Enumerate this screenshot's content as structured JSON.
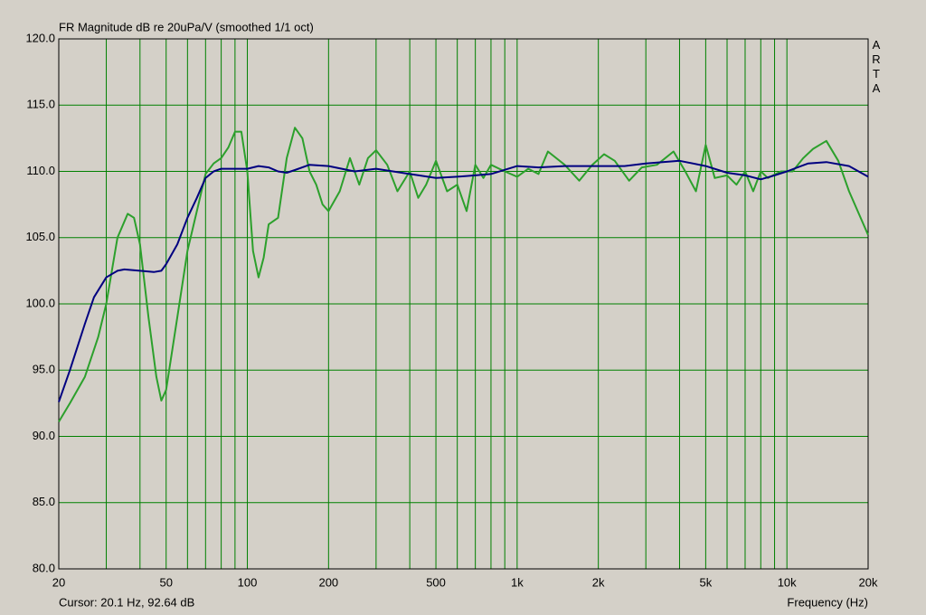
{
  "chart_data": {
    "type": "line",
    "title": "FR Magnitude dB re 20uPa/V (smoothed 1/1 oct)",
    "watermark": "ARTA",
    "annotation": "Cursor: 20.1 Hz, 92.64 dB",
    "x_label": "Frequency (Hz)",
    "x_log": true,
    "grid": true,
    "grid_color": "#008000",
    "xlim": [
      20,
      20000
    ],
    "xticks": [
      20,
      50,
      100,
      200,
      500,
      {
        "value": 1000,
        "label": "1k"
      },
      {
        "value": 2000,
        "label": "2k"
      },
      {
        "value": 5000,
        "label": "5k"
      },
      {
        "value": 10000,
        "label": "10k"
      },
      {
        "value": 20000,
        "label": "20k"
      }
    ],
    "xminor": [
      30,
      40,
      60,
      70,
      80,
      90,
      300,
      400,
      600,
      700,
      800,
      900,
      3000,
      4000,
      6000,
      7000,
      8000,
      9000
    ],
    "ylim": [
      80,
      120
    ],
    "yticks": [
      {
        "value": 80,
        "label": "80.0"
      },
      {
        "value": 85,
        "label": "85.0"
      },
      {
        "value": 90,
        "label": "90.0"
      },
      {
        "value": 95,
        "label": "95.0"
      },
      {
        "value": 100,
        "label": "100.0"
      },
      {
        "value": 105,
        "label": "105.0"
      },
      {
        "value": 110,
        "label": "110.0"
      },
      {
        "value": 115,
        "label": "115.0"
      },
      {
        "value": 120,
        "label": "120.0"
      }
    ],
    "series": [
      {
        "color": "#2ca02c",
        "x": [
          20,
          22,
          25,
          28,
          30,
          33,
          36,
          38,
          40,
          43,
          46,
          48,
          50,
          55,
          60,
          65,
          70,
          75,
          80,
          85,
          90,
          95,
          100,
          105,
          110,
          115,
          120,
          130,
          140,
          150,
          160,
          170,
          180,
          190,
          200,
          220,
          240,
          260,
          280,
          300,
          330,
          360,
          400,
          430,
          460,
          500,
          550,
          600,
          650,
          700,
          750,
          800,
          900,
          1000,
          1100,
          1200,
          1300,
          1500,
          1700,
          1900,
          2100,
          2300,
          2600,
          2900,
          3300,
          3800,
          4200,
          4600,
          5000,
          5400,
          6000,
          6500,
          7000,
          7500,
          8000,
          8500,
          9500,
          10500,
          11500,
          12500,
          14000,
          15500,
          17000,
          20000
        ],
        "values": [
          91.1,
          92.5,
          94.5,
          97.5,
          100,
          105,
          106.8,
          106.5,
          104.5,
          99,
          94.5,
          92.7,
          93.5,
          99,
          104,
          107,
          109.8,
          110.6,
          111,
          111.8,
          113,
          113,
          110,
          104,
          102,
          103.5,
          106,
          106.5,
          111,
          113.3,
          112.5,
          110,
          109,
          107.5,
          107,
          108.5,
          111,
          109,
          111,
          111.6,
          110.5,
          108.5,
          110,
          108,
          109,
          110.8,
          108.5,
          109,
          107,
          110.5,
          109.5,
          110.5,
          110,
          109.6,
          110.2,
          109.8,
          111.5,
          110.5,
          109.3,
          110.5,
          111.3,
          110.8,
          109.3,
          110.3,
          110.5,
          111.5,
          110,
          108.5,
          112,
          109.5,
          109.7,
          109,
          110,
          108.5,
          110,
          109.5,
          110,
          110,
          111,
          111.7,
          112.3,
          110.8,
          108.5,
          105.2
        ]
      },
      {
        "color": "#000080",
        "x": [
          20,
          22,
          25,
          27,
          30,
          33,
          35,
          40,
          45,
          48,
          50,
          55,
          60,
          65,
          70,
          75,
          80,
          90,
          100,
          110,
          120,
          130,
          140,
          150,
          170,
          200,
          250,
          300,
          400,
          500,
          600,
          700,
          800,
          1000,
          1200,
          1500,
          2000,
          2500,
          3000,
          4000,
          5000,
          6000,
          7000,
          8000,
          9000,
          10000,
          12000,
          14000,
          17000,
          20000
        ],
        "values": [
          92.6,
          95,
          98.5,
          100.5,
          102,
          102.5,
          102.6,
          102.5,
          102.4,
          102.5,
          103,
          104.5,
          106.5,
          108,
          109.5,
          110,
          110.2,
          110.2,
          110.2,
          110.4,
          110.3,
          110,
          109.9,
          110.1,
          110.5,
          110.4,
          110,
          110.2,
          109.8,
          109.5,
          109.6,
          109.7,
          109.8,
          110.4,
          110.3,
          110.4,
          110.4,
          110.4,
          110.6,
          110.8,
          110.4,
          109.9,
          109.7,
          109.4,
          109.7,
          110,
          110.6,
          110.7,
          110.4,
          109.6
        ]
      }
    ]
  }
}
